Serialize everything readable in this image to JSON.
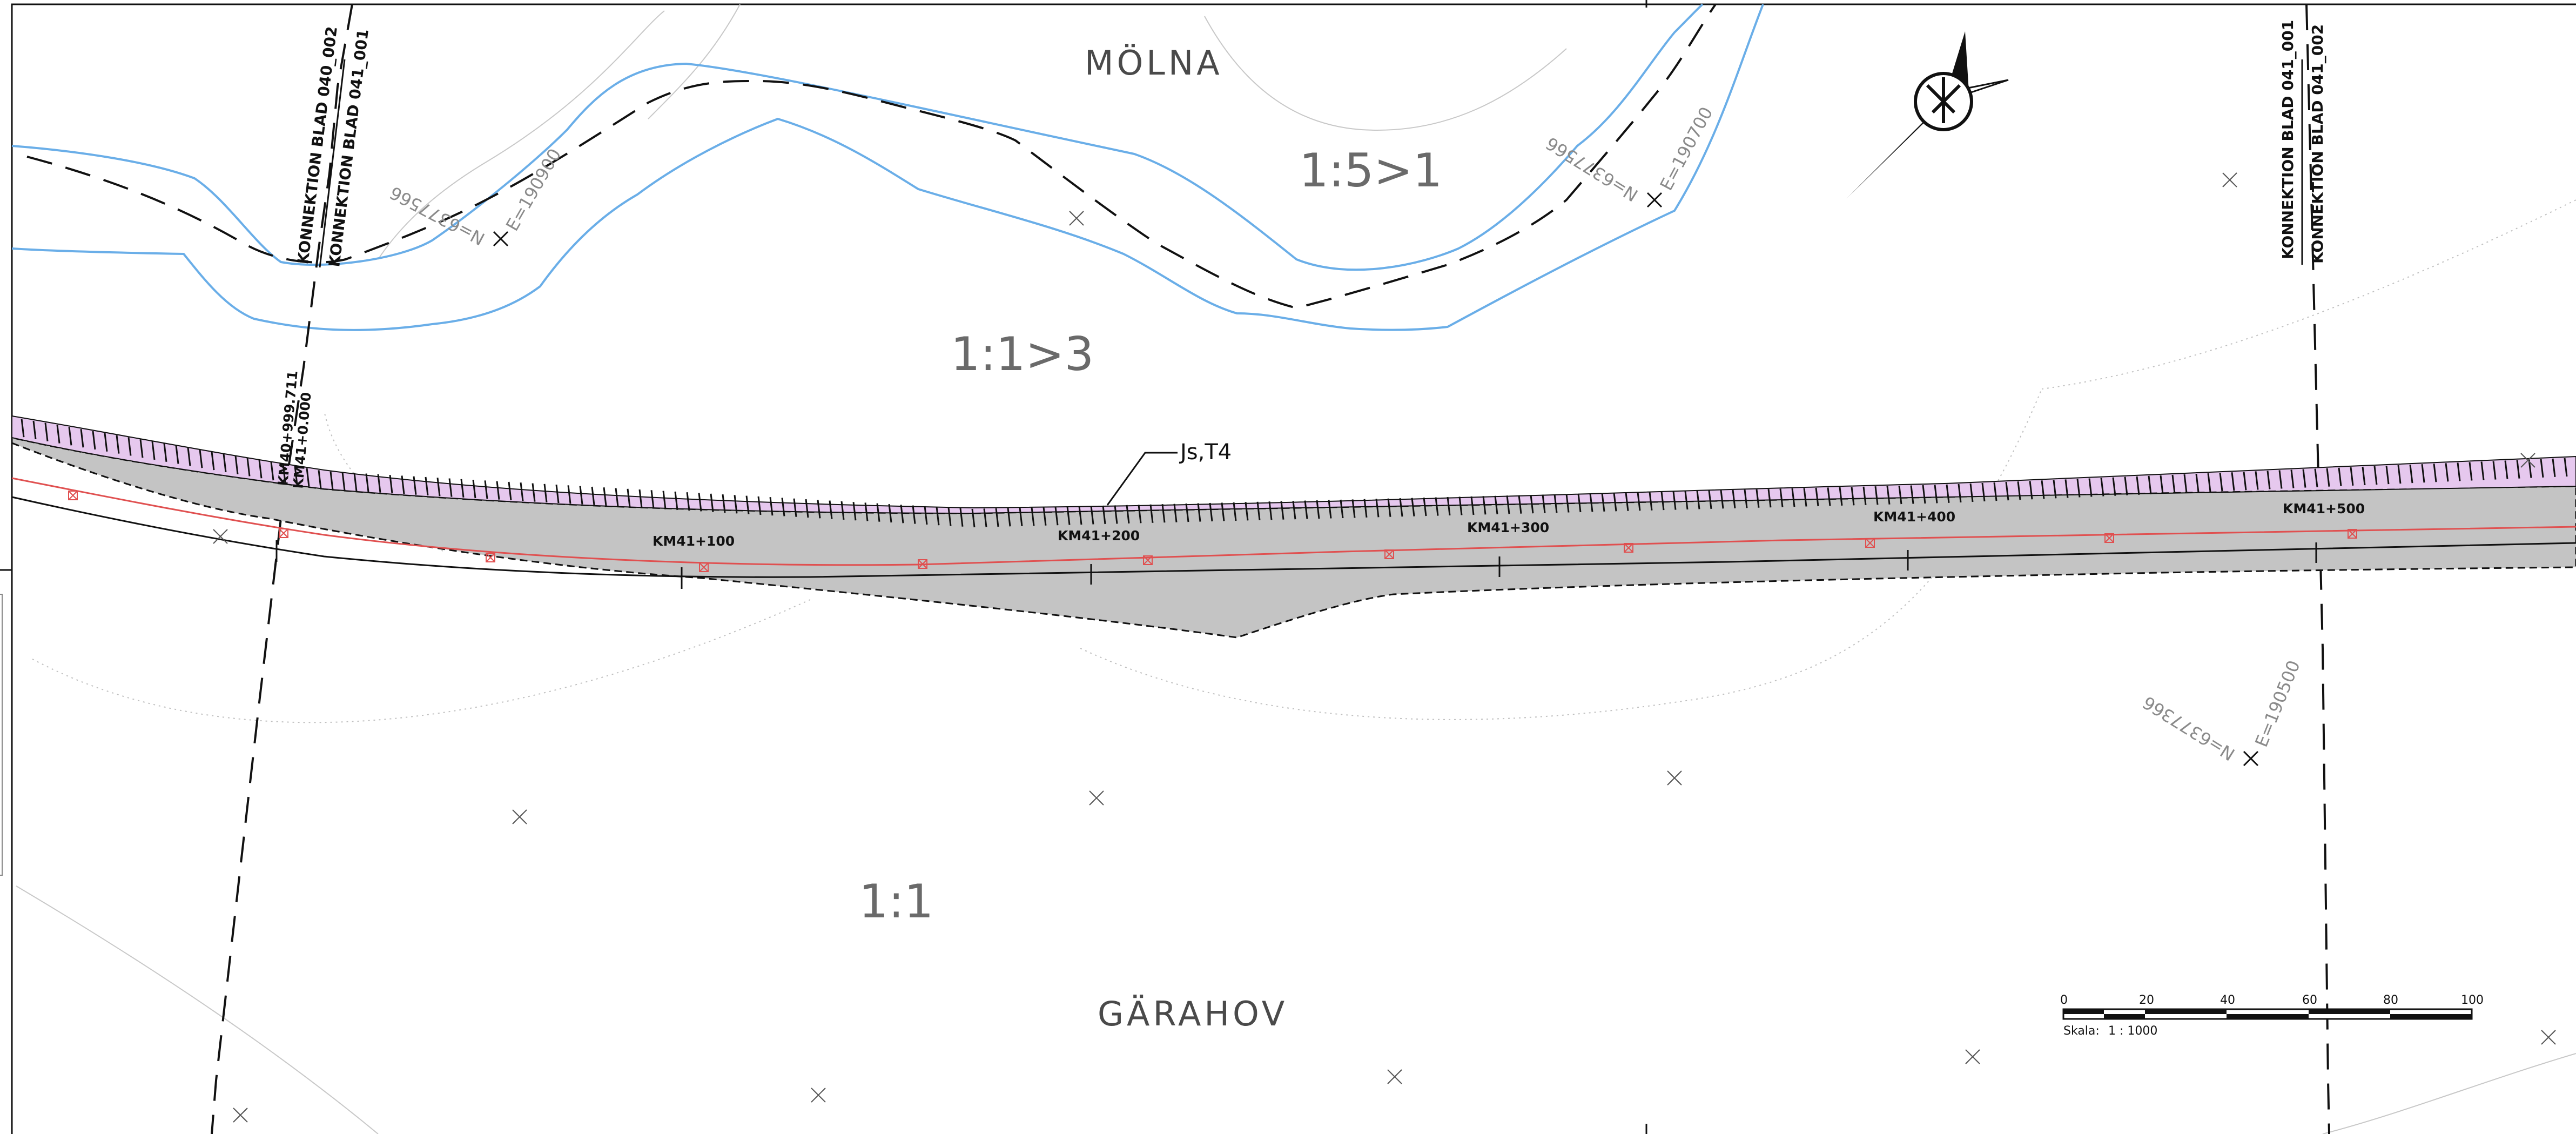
{
  "areas": {
    "north": "MÖLNA",
    "south": "GÄRAHOV"
  },
  "slope_ratios": {
    "top": "1:5>1",
    "middle": "1:1>3",
    "bottom": "1:1"
  },
  "connections": {
    "left_a": "KONNEKTION BLAD 040_002",
    "left_b": "KONNEKTION BLAD 041_001",
    "right_a": "KONNEKTION BLAD 041_001",
    "right_b": "KONNEKTION BLAD 041_002"
  },
  "chainage_start": {
    "a": "KM40+999.711",
    "b": "KM41+0.000"
  },
  "chainages": [
    "KM41+100",
    "KM41+200",
    "KM41+300",
    "KM41+400",
    "KM41+500"
  ],
  "callout": "Js,T4",
  "coordinates": {
    "c1_n": "N=6377566",
    "c1_e": "E=190900",
    "c2_n": "N=6377566",
    "c2_e": "E=190700",
    "c3_n": "N=6377366",
    "c3_e": "E=190500"
  },
  "scale_bar": {
    "ticks": [
      "0",
      "20",
      "40",
      "60",
      "80",
      "100"
    ],
    "label": "Skala:",
    "ratio": "1 : 1000"
  },
  "colors": {
    "watercourse": "#6aaee8",
    "road_fill": "#c4c4c4",
    "hatch_fill": "#e6c8ee",
    "centerline": "#e05050",
    "ink": "#111111"
  },
  "north_arrow": "north-arrow-icon"
}
